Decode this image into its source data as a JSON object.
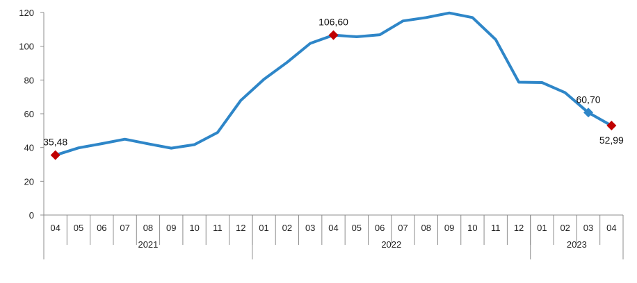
{
  "chart_data": {
    "type": "line",
    "title": "",
    "xlabel": "",
    "ylabel": "",
    "ylim": [
      0,
      120
    ],
    "yticks": [
      0,
      20,
      40,
      60,
      80,
      100,
      120
    ],
    "grid": false,
    "legend": "none",
    "months": [
      "04",
      "05",
      "06",
      "07",
      "08",
      "09",
      "10",
      "11",
      "12",
      "01",
      "02",
      "03",
      "04",
      "05",
      "06",
      "07",
      "08",
      "09",
      "10",
      "11",
      "12",
      "01",
      "02",
      "03",
      "04"
    ],
    "years": [
      {
        "label": "2021",
        "count": 9
      },
      {
        "label": "2022",
        "count": 12
      },
      {
        "label": "2023",
        "count": 4
      }
    ],
    "series": [
      {
        "values": [
          35.48,
          39.8,
          42.3,
          44.9,
          42.2,
          39.6,
          41.7,
          48.9,
          67.9,
          80.4,
          90.5,
          101.7,
          106.6,
          105.6,
          106.8,
          115.0,
          117.0,
          119.7,
          117.0,
          104.0,
          78.7,
          78.5,
          72.5,
          60.7,
          52.99
        ],
        "color": "#2e86c8"
      }
    ],
    "markers": [
      {
        "index": 0,
        "label": "35,48",
        "color": "#c00000",
        "position": "above"
      },
      {
        "index": 12,
        "label": "106,60",
        "color": "#c00000",
        "position": "above"
      },
      {
        "index": 23,
        "label": "60,70",
        "color": "#2e86c8",
        "position": "above"
      },
      {
        "index": 24,
        "label": "52,99",
        "color": "#c00000",
        "position": "below"
      }
    ]
  }
}
